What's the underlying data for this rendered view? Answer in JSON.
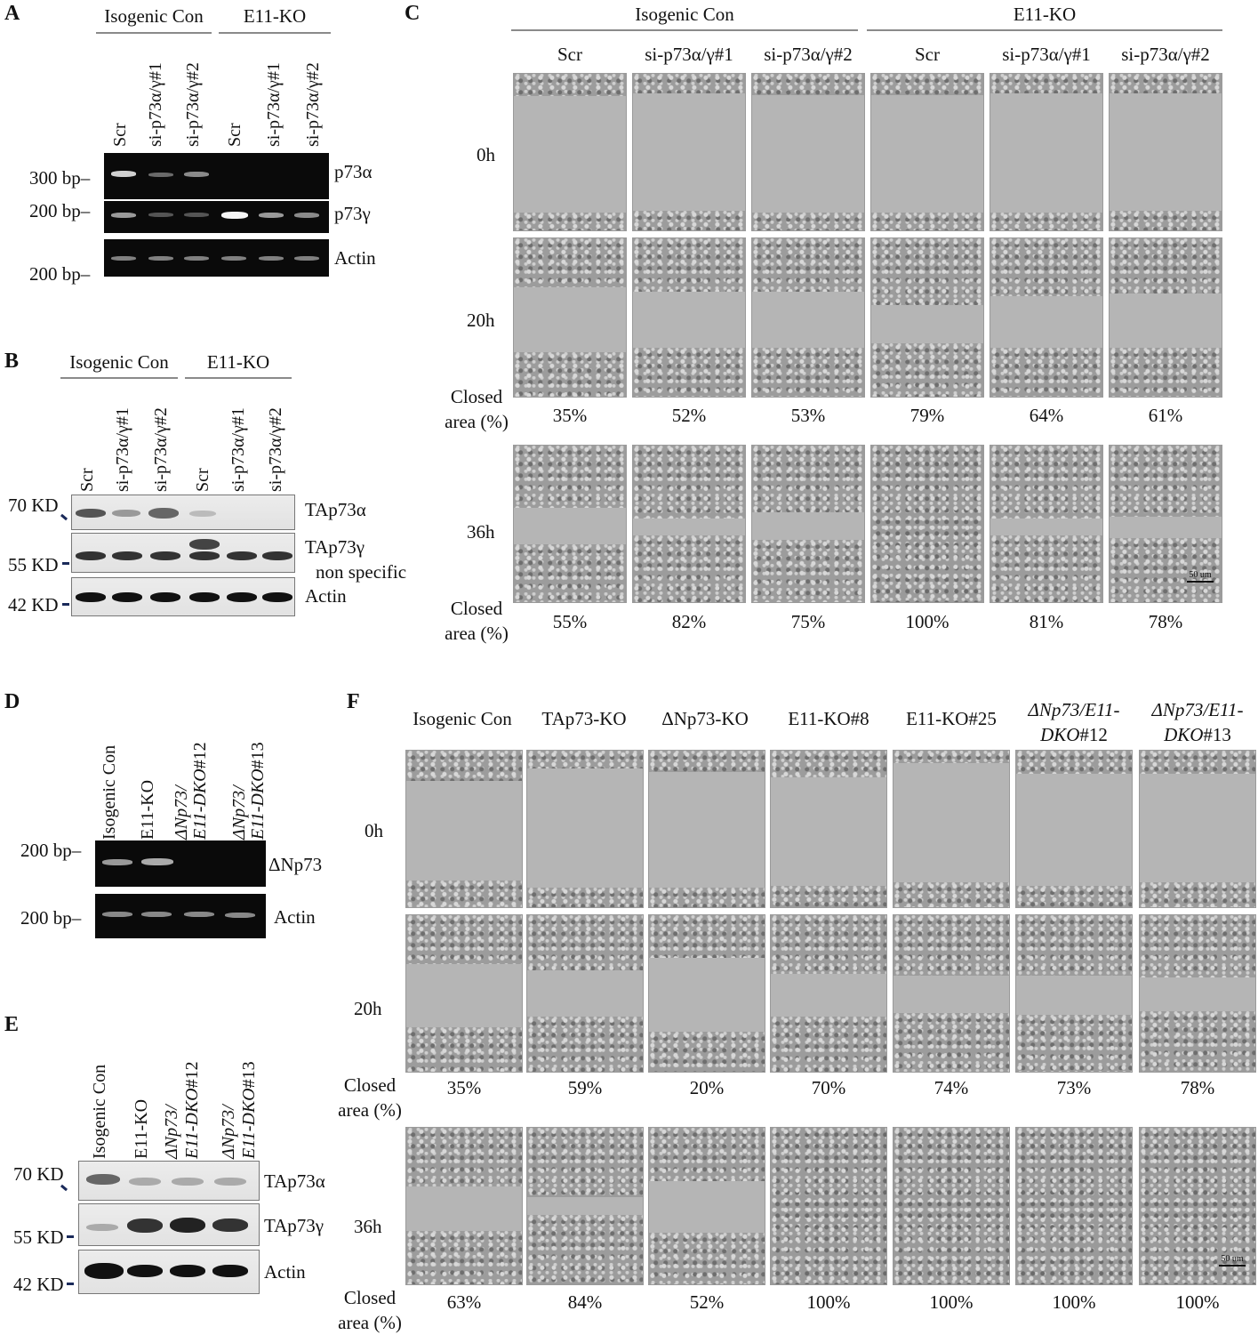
{
  "panels": {
    "A": {
      "label": "A",
      "groups": [
        "Isogenic Con",
        "E11-KO"
      ],
      "lanes": [
        "Scr",
        "si-p73α/γ#1",
        "si-p73α/γ#2",
        "Scr",
        "si-p73α/γ#1",
        "si-p73α/γ#2"
      ],
      "markers": [
        "300 bp–",
        "200 bp–",
        "200 bp–"
      ],
      "bands": [
        "p73α",
        "p73γ",
        "Actin"
      ]
    },
    "B": {
      "label": "B",
      "groups": [
        "Isogenic Con",
        "E11-KO"
      ],
      "lanes": [
        "Scr",
        "si-p73α/γ#1",
        "si-p73α/γ#2",
        "Scr",
        "si-p73α/γ#1",
        "si-p73α/γ#2"
      ],
      "markers": [
        "70 KD",
        "55 KD",
        "42 KD"
      ],
      "bands": [
        "TAp73α",
        "TAp73γ",
        "non specific",
        "Actin"
      ]
    },
    "C": {
      "label": "C",
      "groups": [
        "Isogenic Con",
        "E11-KO"
      ],
      "columns": [
        "Scr",
        "si-p73α/γ#1",
        "si-p73α/γ#2",
        "Scr",
        "si-p73α/γ#1",
        "si-p73α/γ#2"
      ],
      "rows": [
        "0h",
        "20h",
        "36h"
      ],
      "closed_label": [
        "Closed",
        "area (%)"
      ],
      "closed_20h": [
        "35%",
        "52%",
        "53%",
        "79%",
        "64%",
        "61%"
      ],
      "closed_36h": [
        "55%",
        "82%",
        "75%",
        "100%",
        "81%",
        "78%"
      ],
      "scale_bar": "50 um"
    },
    "D": {
      "label": "D",
      "lanes": [
        "Isogenic Con",
        "E11-KO",
        "ΔNp73/",
        "E11-DKO",
        "#12",
        "ΔNp73/",
        "E11-DKO",
        "#13"
      ],
      "markers": [
        "200 bp–",
        "200 bp–"
      ],
      "bands": [
        "ΔNp73",
        "Actin"
      ]
    },
    "E": {
      "label": "E",
      "lanes": [
        "Isogenic Con",
        "E11-KO",
        "ΔNp73/",
        "E11-DKO",
        "#12",
        "ΔNp73/",
        "E11-DKO",
        "#13"
      ],
      "markers": [
        "70 KD",
        "55 KD",
        "42 KD"
      ],
      "bands": [
        "TAp73α",
        "TAp73γ",
        "Actin"
      ]
    },
    "F": {
      "label": "F",
      "columns": [
        "Isogenic Con",
        "TAp73-KO",
        "ΔNp73-KO",
        "E11-KO#8",
        "E11-KO#25"
      ],
      "columns_dko": [
        [
          "ΔNp73/E11-",
          "DKO",
          "#12"
        ],
        [
          "ΔNp73/E11-",
          "DKO",
          "#13"
        ]
      ],
      "rows": [
        "0h",
        "20h",
        "36h"
      ],
      "closed_label": [
        "Closed",
        "area (%)"
      ],
      "closed_20h": [
        "35%",
        "59%",
        "20%",
        "70%",
        "74%",
        "73%",
        "78%"
      ],
      "closed_36h": [
        "63%",
        "84%",
        "52%",
        "100%",
        "100%",
        "100%",
        "100%"
      ],
      "scale_bar": "50 um"
    }
  }
}
